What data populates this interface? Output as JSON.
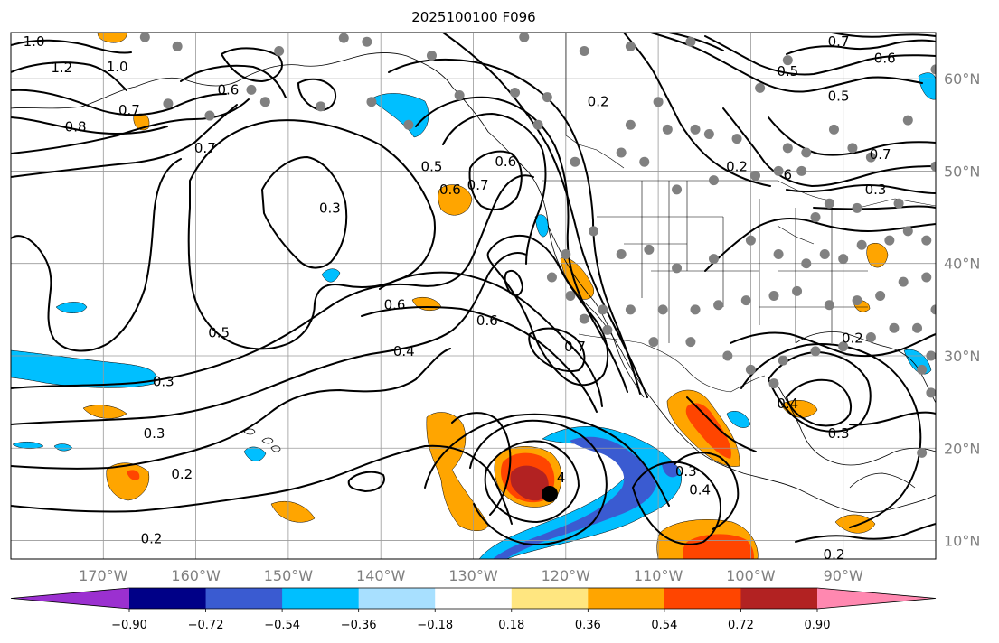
{
  "title": "2025100100 F096",
  "lon_labels": [
    "170°W",
    "160°W",
    "150°W",
    "140°W",
    "130°W",
    "120°W",
    "110°W",
    "100°W",
    "90°W"
  ],
  "lat_labels": [
    "60°N",
    "50°N",
    "40°N",
    "30°N",
    "20°N",
    "10°N"
  ],
  "colorbar": {
    "ticks": [
      "−0.90",
      "−0.72",
      "−0.54",
      "−0.36",
      "−0.18",
      "0.18",
      "0.36",
      "0.54",
      "0.72",
      "0.90"
    ],
    "colors": [
      "#9b30d0",
      "#000087",
      "#3a5bd1",
      "#00bfff",
      "#a8e0ff",
      "#ffffff",
      "#ffe680",
      "#ffa500",
      "#ff4500",
      "#b22222",
      "#ff88b0"
    ]
  },
  "contour_labels": [
    {
      "text": "1.0",
      "lon": -177.5,
      "lat": 64.0
    },
    {
      "text": "1.2",
      "lon": -174.5,
      "lat": 61.2
    },
    {
      "text": "1.0",
      "lon": -168.5,
      "lat": 61.3
    },
    {
      "text": "0.7",
      "lon": -167.2,
      "lat": 56.6
    },
    {
      "text": "0.8",
      "lon": -173.0,
      "lat": 54.8
    },
    {
      "text": "0.7",
      "lon": -159.0,
      "lat": 52.5
    },
    {
      "text": "0.6",
      "lon": -156.5,
      "lat": 58.8
    },
    {
      "text": "0.3",
      "lon": -145.5,
      "lat": 46.0
    },
    {
      "text": "0.5",
      "lon": -134.5,
      "lat": 50.5
    },
    {
      "text": "0.6",
      "lon": -132.5,
      "lat": 48.0
    },
    {
      "text": "0.7",
      "lon": -129.5,
      "lat": 48.5
    },
    {
      "text": "0.6",
      "lon": -126.5,
      "lat": 51.0
    },
    {
      "text": "0.2",
      "lon": -116.5,
      "lat": 57.5
    },
    {
      "text": "0.5",
      "lon": -96.0,
      "lat": 60.8
    },
    {
      "text": "0.7",
      "lon": -90.5,
      "lat": 64.0
    },
    {
      "text": "0.6",
      "lon": -85.5,
      "lat": 62.2
    },
    {
      "text": "0.5",
      "lon": -90.5,
      "lat": 58.1
    },
    {
      "text": "0.7",
      "lon": -86.0,
      "lat": 51.8
    },
    {
      "text": "0.3",
      "lon": -86.5,
      "lat": 48.0
    },
    {
      "text": "0.2",
      "lon": -101.5,
      "lat": 50.5
    },
    {
      "text": "6",
      "lon": -96.0,
      "lat": 49.6
    },
    {
      "text": "0.6",
      "lon": -138.5,
      "lat": 35.5
    },
    {
      "text": "0.6",
      "lon": -128.5,
      "lat": 33.8
    },
    {
      "text": "0.4",
      "lon": -137.5,
      "lat": 30.5
    },
    {
      "text": "0.7",
      "lon": -119.0,
      "lat": 31.0
    },
    {
      "text": "0.5",
      "lon": -157.5,
      "lat": 32.5
    },
    {
      "text": "0.3",
      "lon": -163.5,
      "lat": 27.2
    },
    {
      "text": "0.3",
      "lon": -164.5,
      "lat": 21.6
    },
    {
      "text": "0.2",
      "lon": -161.5,
      "lat": 17.2
    },
    {
      "text": "0.2",
      "lon": -164.8,
      "lat": 10.2
    },
    {
      "text": "0.4",
      "lon": -96.0,
      "lat": 24.8
    },
    {
      "text": "0.3",
      "lon": -90.5,
      "lat": 21.6
    },
    {
      "text": "0.2",
      "lon": -89.0,
      "lat": 31.9
    },
    {
      "text": "0.3",
      "lon": -107.0,
      "lat": 17.5
    },
    {
      "text": "0.4",
      "lon": -105.5,
      "lat": 15.5
    },
    {
      "text": "4",
      "lon": -120.5,
      "lat": 16.8
    },
    {
      "text": "0.2",
      "lon": -91.0,
      "lat": 8.5
    }
  ],
  "station_markers": [
    [
      -165.5,
      64.5
    ],
    [
      -162,
      63.5
    ],
    [
      -151,
      63
    ],
    [
      -144,
      64.4
    ],
    [
      -141.5,
      64
    ],
    [
      -134.5,
      62.5
    ],
    [
      -154,
      58.8
    ],
    [
      -152.5,
      57.5
    ],
    [
      -163.0,
      57.3
    ],
    [
      -158.5,
      56
    ],
    [
      -146.5,
      57
    ],
    [
      -141,
      57.5
    ],
    [
      -131.5,
      58.2
    ],
    [
      -137,
      55
    ],
    [
      -125.5,
      58.5
    ],
    [
      -122,
      58
    ],
    [
      -123.0,
      55
    ],
    [
      -119,
      51
    ],
    [
      -113,
      55
    ],
    [
      -109,
      54.5
    ],
    [
      -106,
      54.5
    ],
    [
      -104.5,
      54
    ],
    [
      -101.5,
      53.5
    ],
    [
      -96,
      52.5
    ],
    [
      -94,
      52
    ],
    [
      -91,
      54.5
    ],
    [
      -89,
      52.5
    ],
    [
      -87,
      51.5
    ],
    [
      -110,
      57.5
    ],
    [
      -114,
      52
    ],
    [
      -111.5,
      51
    ],
    [
      -108,
      48
    ],
    [
      -104,
      49
    ],
    [
      -99.5,
      49.5
    ],
    [
      -97,
      50
    ],
    [
      -94.5,
      50
    ],
    [
      -91.5,
      46.5
    ],
    [
      -93,
      45
    ],
    [
      -88.5,
      46
    ],
    [
      -84,
      46.5
    ],
    [
      -83,
      43.5
    ],
    [
      -85,
      42.5
    ],
    [
      -88,
      42
    ],
    [
      -90,
      40.5
    ],
    [
      -92,
      41
    ],
    [
      -94,
      40
    ],
    [
      -97,
      41
    ],
    [
      -100,
      42.5
    ],
    [
      -104,
      40.5
    ],
    [
      -108,
      39.5
    ],
    [
      -111,
      41.5
    ],
    [
      -114,
      41
    ],
    [
      -117,
      43.5
    ],
    [
      -120,
      41
    ],
    [
      -121.5,
      38.5
    ],
    [
      -119.5,
      36.5
    ],
    [
      -116,
      35
    ],
    [
      -113,
      35
    ],
    [
      -109.5,
      35
    ],
    [
      -106,
      35
    ],
    [
      -103.5,
      35.5
    ],
    [
      -100.5,
      36
    ],
    [
      -97.5,
      36.5
    ],
    [
      -95,
      37
    ],
    [
      -91.5,
      35.5
    ],
    [
      -88.5,
      36
    ],
    [
      -86,
      36.5
    ],
    [
      -83.5,
      38
    ],
    [
      -81,
      38.5
    ],
    [
      -79,
      40.5
    ],
    [
      -81,
      42.5
    ],
    [
      -77.5,
      43
    ],
    [
      -80,
      35
    ],
    [
      -82,
      33
    ],
    [
      -84.5,
      33
    ],
    [
      -87,
      32
    ],
    [
      -90,
      31
    ],
    [
      -93,
      30.5
    ],
    [
      -96.5,
      29.5
    ],
    [
      -100,
      28.5
    ],
    [
      -102.5,
      30
    ],
    [
      -106.5,
      31.5
    ],
    [
      -110.5,
      31.5
    ],
    [
      -118,
      34
    ],
    [
      -115.5,
      32.8
    ],
    [
      -97.5,
      27
    ],
    [
      -81.5,
      28.5
    ],
    [
      -80.5,
      26
    ],
    [
      -80.5,
      30
    ],
    [
      -78.5,
      33.5
    ],
    [
      -76.5,
      36
    ],
    [
      -75,
      39
    ],
    [
      -76,
      42.5
    ],
    [
      -79,
      45.5
    ],
    [
      -75.5,
      45.5
    ],
    [
      -78,
      49
    ],
    [
      -80,
      50.5
    ],
    [
      -77,
      52
    ],
    [
      -83,
      55.5
    ],
    [
      -80,
      61
    ],
    [
      -99,
      59
    ],
    [
      -96,
      62
    ],
    [
      -106.5,
      64
    ],
    [
      -113,
      63.5
    ],
    [
      -118,
      63
    ],
    [
      -124.5,
      64.5
    ],
    [
      -81.5,
      19.5
    ],
    [
      -78.5,
      24
    ]
  ]
}
